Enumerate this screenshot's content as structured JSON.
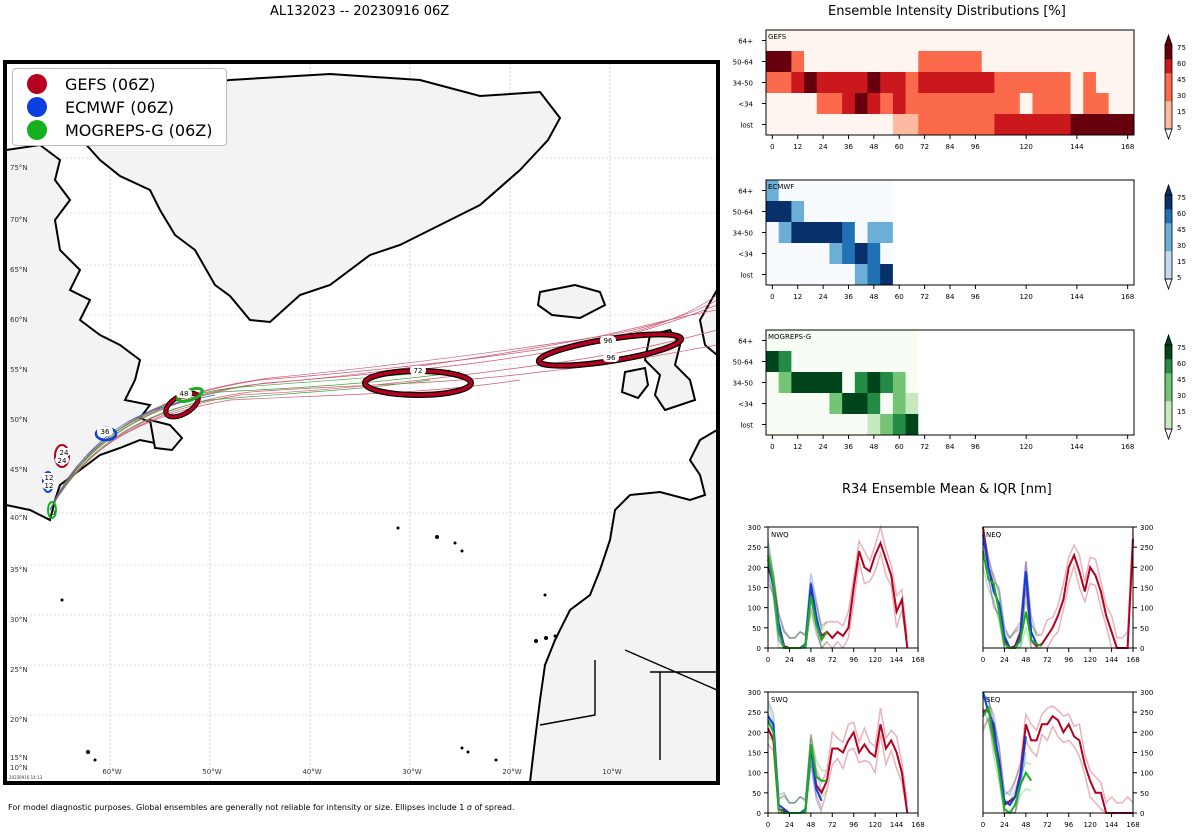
{
  "map": {
    "title": "AL132023 -- 20230916 06Z",
    "legend": [
      {
        "label": "GEFS (06Z)",
        "color": "#b5001e"
      },
      {
        "label": "ECMWF (06Z)",
        "color": "#0a3fe0"
      },
      {
        "label": "MOGREPS-G (06Z)",
        "color": "#16b01e"
      }
    ],
    "lat_labels": [
      "75°N",
      "70°N",
      "65°N",
      "60°N",
      "55°N",
      "50°N",
      "45°N",
      "40°N",
      "35°N",
      "30°N",
      "25°N",
      "20°N",
      "15°N",
      "10°N"
    ],
    "lon_labels": [
      "60°W",
      "50°W",
      "40°W",
      "30°W",
      "20°W",
      "10°W"
    ],
    "ellipse_labels": [
      "72",
      "96",
      "96",
      "48",
      "36",
      "24",
      "24",
      "12",
      "12",
      "0"
    ],
    "stamp": "20230916 14:13",
    "footnote": "For model diagnostic purposes. Global ensembles are generally not reliable for intensity or size. Ellipses include 1 σ of spread."
  },
  "intensity": {
    "title": "Ensemble Intensity Distributions [%]",
    "categories": [
      "64+",
      "50-64",
      "34-50",
      "<34",
      "lost"
    ],
    "x_ticks": [
      "0",
      "12",
      "24",
      "36",
      "48",
      "60",
      "72",
      "84",
      "96",
      "120",
      "144",
      "168"
    ],
    "colorbar_ticks": [
      "75",
      "60",
      "45",
      "30",
      "15",
      "5"
    ],
    "panels": [
      {
        "name": "GEFS",
        "colors": [
          "#fff5f0",
          "#fcbba1",
          "#fb6a4a",
          "#cb181d",
          "#67000d"
        ]
      },
      {
        "name": "ECMWF",
        "colors": [
          "#f7fbff",
          "#c6dbef",
          "#6baed6",
          "#2171b5",
          "#08306b"
        ]
      },
      {
        "name": "MOGREPS-G",
        "colors": [
          "#f7fcf5",
          "#c7e9c0",
          "#74c476",
          "#238b45",
          "#00441b"
        ]
      }
    ]
  },
  "r34": {
    "title": "R34 Ensemble Mean & IQR [nm]",
    "y_ticks": [
      "300",
      "250",
      "200",
      "150",
      "100",
      "50",
      "0"
    ],
    "x_ticks": [
      "0",
      "24",
      "48",
      "72",
      "96",
      "120",
      "144",
      "168"
    ],
    "quadrants": [
      "NWQ",
      "NEQ",
      "SWQ",
      "SEQ"
    ]
  },
  "chart_data": {
    "type": "heatmap",
    "title": "Ensemble Intensity Distributions [%]",
    "x": [
      0,
      6,
      12,
      18,
      24,
      30,
      36,
      42,
      48,
      54,
      60,
      66,
      72,
      78,
      84,
      90,
      96,
      102,
      108,
      114,
      120,
      126,
      132,
      138,
      144,
      150,
      156,
      162,
      168
    ],
    "y_categories": [
      "64+",
      "50-64",
      "34-50",
      "<34",
      "lost"
    ],
    "series": [
      {
        "name": "GEFS",
        "grid": [
          [
            0,
            0,
            0,
            0,
            0,
            0,
            0,
            0,
            0,
            0,
            0,
            0,
            0,
            0,
            0,
            0,
            0,
            0,
            0,
            0,
            0,
            0,
            0,
            0,
            0,
            0,
            0,
            0,
            0
          ],
          [
            75,
            75,
            15,
            0,
            0,
            0,
            0,
            0,
            0,
            0,
            0,
            0,
            15,
            15,
            15,
            15,
            15,
            0,
            0,
            0,
            0,
            0,
            0,
            0,
            0,
            0,
            0,
            0,
            0
          ],
          [
            15,
            15,
            60,
            75,
            60,
            45,
            45,
            60,
            75,
            60,
            45,
            30,
            45,
            60,
            45,
            45,
            45,
            45,
            30,
            30,
            30,
            30,
            30,
            15,
            0,
            15,
            0,
            0,
            0
          ],
          [
            0,
            0,
            0,
            0,
            30,
            30,
            60,
            75,
            45,
            30,
            45,
            30,
            15,
            30,
            30,
            30,
            15,
            30,
            15,
            15,
            0,
            15,
            15,
            15,
            0,
            15,
            15,
            0,
            0
          ],
          [
            0,
            0,
            0,
            0,
            0,
            0,
            0,
            0,
            0,
            0,
            5,
            5,
            15,
            15,
            30,
            30,
            30,
            30,
            45,
            45,
            60,
            60,
            60,
            60,
            75,
            75,
            75,
            75,
            75
          ]
        ]
      },
      {
        "name": "ECMWF",
        "grid": [
          [
            15,
            0,
            0,
            0,
            0,
            0,
            0,
            0,
            0,
            0,
            0,
            0,
            0,
            0,
            0,
            0,
            0,
            0,
            0,
            0,
            0,
            0,
            0,
            0,
            0,
            0,
            0,
            0,
            0
          ],
          [
            75,
            75,
            30,
            0,
            0,
            0,
            0,
            0,
            0,
            0,
            0,
            0,
            0,
            0,
            0,
            0,
            0,
            0,
            0,
            0,
            0,
            0,
            0,
            0,
            0,
            0,
            0,
            0,
            0
          ],
          [
            0,
            15,
            75,
            75,
            75,
            75,
            45,
            0,
            15,
            15,
            0,
            0,
            0,
            0,
            0,
            0,
            0,
            0,
            0,
            0,
            0,
            0,
            0,
            0,
            0,
            0,
            0,
            0,
            0
          ],
          [
            0,
            0,
            0,
            0,
            0,
            15,
            45,
            75,
            45,
            0,
            0,
            0,
            0,
            0,
            0,
            0,
            0,
            0,
            0,
            0,
            0,
            0,
            0,
            0,
            0,
            0,
            0,
            0,
            0
          ],
          [
            0,
            0,
            0,
            0,
            0,
            0,
            0,
            15,
            45,
            75,
            0,
            0,
            0,
            0,
            0,
            0,
            0,
            0,
            0,
            0,
            0,
            0,
            0,
            0,
            0,
            0,
            0,
            0,
            0
          ]
        ]
      },
      {
        "name": "MOGREPS-G",
        "grid": [
          [
            0,
            0,
            0,
            0,
            0,
            0,
            0,
            0,
            0,
            0,
            0,
            0,
            0,
            0,
            0,
            0,
            0,
            0,
            0,
            0,
            0,
            0,
            0,
            0,
            0,
            0,
            0,
            0,
            0
          ],
          [
            75,
            60,
            0,
            0,
            0,
            0,
            0,
            0,
            0,
            0,
            0,
            0,
            0,
            0,
            0,
            0,
            0,
            0,
            0,
            0,
            0,
            0,
            0,
            0,
            0,
            0,
            0,
            0,
            0
          ],
          [
            0,
            30,
            75,
            75,
            75,
            75,
            0,
            60,
            75,
            45,
            15,
            0,
            0,
            0,
            0,
            0,
            0,
            0,
            0,
            0,
            0,
            0,
            0,
            0,
            0,
            0,
            0,
            0,
            0
          ],
          [
            0,
            0,
            0,
            0,
            0,
            30,
            75,
            75,
            45,
            0,
            15,
            5,
            0,
            0,
            0,
            0,
            0,
            0,
            0,
            0,
            0,
            0,
            0,
            0,
            0,
            0,
            0,
            0,
            0
          ],
          [
            0,
            0,
            0,
            0,
            0,
            0,
            0,
            0,
            5,
            30,
            60,
            75,
            0,
            0,
            0,
            0,
            0,
            0,
            0,
            0,
            0,
            0,
            0,
            0,
            0,
            0,
            0,
            0,
            0
          ]
        ]
      }
    ],
    "line_charts": {
      "type": "line",
      "title": "R34 Ensemble Mean & IQR [nm]",
      "x": [
        0,
        6,
        12,
        18,
        24,
        30,
        36,
        42,
        48,
        54,
        60,
        66,
        72,
        78,
        84,
        90,
        96,
        102,
        108,
        114,
        120,
        126,
        132,
        138,
        144,
        150,
        156,
        162,
        168
      ],
      "ylim": [
        0,
        300
      ],
      "panels": [
        {
          "name": "NWQ",
          "series": [
            {
              "name": "GEFS",
              "values": [
                200,
                160,
                60,
                5,
                0,
                0,
                0,
                5,
                140,
                70,
                30,
                40,
                25,
                40,
                30,
                50,
                150,
                240,
                200,
                190,
                230,
                260,
                220,
                180,
                90,
                120,
                0,
                null,
                null
              ]
            },
            {
              "name": "ECMWF",
              "values": [
                220,
                150,
                60,
                0,
                0,
                0,
                0,
                10,
                160,
                80,
                20,
                null,
                null,
                null,
                null,
                null,
                null,
                null,
                null,
                null,
                null,
                null,
                null,
                null,
                null,
                null,
                null,
                null,
                null
              ]
            },
            {
              "name": "MOGREPS-G",
              "values": [
                230,
                160,
                40,
                0,
                0,
                0,
                0,
                5,
                130,
                60,
                20,
                40,
                null,
                null,
                null,
                null,
                null,
                null,
                null,
                null,
                null,
                null,
                null,
                null,
                null,
                null,
                null,
                null,
                null
              ]
            }
          ]
        },
        {
          "name": "NEQ",
          "series": [
            {
              "name": "GEFS",
              "values": [
                300,
                200,
                150,
                100,
                20,
                0,
                5,
                40,
                190,
                20,
                5,
                10,
                30,
                50,
                80,
                120,
                200,
                230,
                190,
                140,
                200,
                180,
                140,
                80,
                40,
                0,
                0,
                0,
                270
              ]
            },
            {
              "name": "ECMWF",
              "values": [
                280,
                200,
                140,
                110,
                30,
                0,
                0,
                30,
                190,
                40,
                10,
                null,
                null,
                null,
                null,
                null,
                null,
                null,
                null,
                null,
                null,
                null,
                null,
                null,
                null,
                null,
                null,
                null,
                null
              ]
            },
            {
              "name": "MOGREPS-G",
              "values": [
                240,
                170,
                160,
                90,
                10,
                0,
                0,
                20,
                90,
                20,
                10,
                5,
                null,
                null,
                null,
                null,
                null,
                null,
                null,
                null,
                null,
                null,
                null,
                null,
                null,
                null,
                null,
                null,
                null
              ]
            }
          ]
        },
        {
          "name": "SWQ",
          "series": [
            {
              "name": "GEFS",
              "values": [
                210,
                180,
                10,
                5,
                0,
                0,
                0,
                5,
                170,
                70,
                50,
                80,
                160,
                160,
                150,
                180,
                200,
                150,
                170,
                150,
                140,
                220,
                160,
                180,
                150,
                100,
                0,
                null,
                null
              ]
            },
            {
              "name": "ECMWF",
              "values": [
                240,
                220,
                20,
                10,
                0,
                0,
                0,
                10,
                160,
                60,
                30,
                null,
                null,
                null,
                null,
                null,
                null,
                null,
                null,
                null,
                null,
                null,
                null,
                null,
                null,
                null,
                null,
                null,
                null
              ]
            },
            {
              "name": "MOGREPS-G",
              "values": [
                230,
                200,
                10,
                0,
                0,
                0,
                0,
                5,
                170,
                90,
                80,
                80,
                null,
                null,
                null,
                null,
                null,
                null,
                null,
                null,
                null,
                null,
                null,
                null,
                null,
                null,
                null,
                null,
                null
              ]
            }
          ]
        },
        {
          "name": "SEQ",
          "series": [
            {
              "name": "GEFS",
              "values": [
                250,
                260,
                200,
                130,
                20,
                30,
                40,
                100,
                220,
                180,
                180,
                220,
                220,
                240,
                230,
                200,
                220,
                190,
                180,
                120,
                80,
                50,
                50,
                0,
                0,
                0,
                0,
                0,
                0
              ]
            },
            {
              "name": "ECMWF",
              "values": [
                300,
                250,
                220,
                120,
                30,
                20,
                40,
                90,
                190,
                null,
                null,
                null,
                null,
                null,
                null,
                null,
                null,
                null,
                null,
                null,
                null,
                null,
                null,
                null,
                null,
                null,
                null,
                null,
                null
              ]
            },
            {
              "name": "MOGREPS-G",
              "values": [
                240,
                260,
                180,
                100,
                10,
                0,
                20,
                70,
                100,
                80,
                null,
                null,
                null,
                null,
                null,
                null,
                null,
                null,
                null,
                null,
                null,
                null,
                null,
                null,
                null,
                null,
                null,
                null,
                null
              ]
            }
          ]
        }
      ]
    }
  }
}
